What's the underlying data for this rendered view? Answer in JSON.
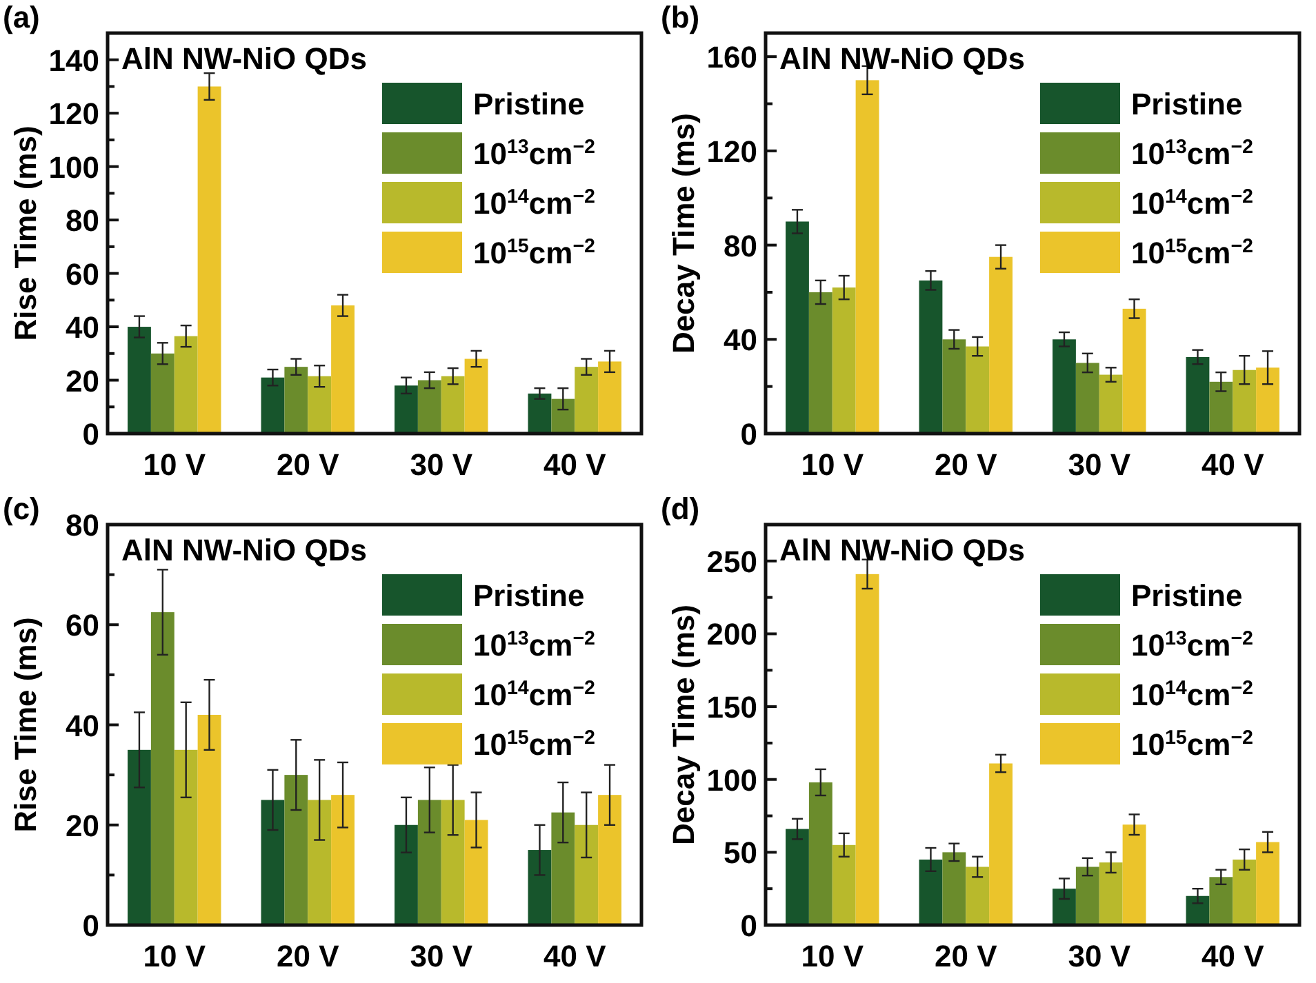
{
  "chart_data": [
    {
      "type": "bar",
      "title": "(a)",
      "annotations": [
        "AlN NW-NiO QDs"
      ],
      "ylabel": "Rise Time (ms)",
      "categories": [
        "10 V",
        "20 V",
        "30 V",
        "40 V"
      ],
      "ylim": [
        0,
        150
      ],
      "yticks": [
        0,
        {
          "value": 10,
          "label": null
        },
        20,
        {
          "value": 30,
          "label": null
        },
        40,
        {
          "value": 50,
          "label": null
        },
        60,
        {
          "value": 70,
          "label": null
        },
        80,
        {
          "value": 90,
          "label": null
        },
        100,
        {
          "value": 110,
          "label": null
        },
        120,
        {
          "value": 130,
          "label": null
        },
        140
      ],
      "legend": "top right",
      "grid": false,
      "series": [
        {
          "name": "Pristine",
          "color": "#17552c",
          "values": [
            40,
            21,
            18,
            15
          ],
          "errors": [
            4,
            3,
            3,
            2
          ]
        },
        {
          "name": "10$^{13}$cm$^{−2}$",
          "color": "#6b8c2c",
          "values": [
            30,
            25,
            20,
            13
          ],
          "errors": [
            4,
            3,
            3,
            4
          ]
        },
        {
          "name": "10$^{14}$cm$^{−2}$",
          "color": "#b8b92c",
          "values": [
            36.5,
            21.5,
            21.5,
            25
          ],
          "errors": [
            4,
            4,
            3,
            3
          ]
        },
        {
          "name": "10$^{15}$cm$^{−2}$",
          "color": "#ebc42b",
          "values": [
            130,
            48,
            28,
            27
          ],
          "errors": [
            5,
            4,
            3,
            4
          ]
        }
      ]
    },
    {
      "type": "bar",
      "title": "(b)",
      "annotations": [
        "AlN NW-NiO QDs"
      ],
      "ylabel": "Decay Time (ms)",
      "categories": [
        "10 V",
        "20 V",
        "30 V",
        "40 V"
      ],
      "ylim": [
        0,
        170
      ],
      "yticks": [
        0,
        {
          "value": 20,
          "label": null
        },
        40,
        {
          "value": 60,
          "label": null
        },
        80,
        {
          "value": 100,
          "label": null
        },
        120,
        {
          "value": 140,
          "label": null
        },
        160
      ],
      "legend": "top right",
      "grid": false,
      "series": [
        {
          "name": "Pristine",
          "color": "#17552c",
          "values": [
            90,
            65,
            40,
            32.5
          ],
          "errors": [
            5,
            4,
            3,
            3
          ]
        },
        {
          "name": "10$^{13}$cm$^{−2}$",
          "color": "#6b8c2c",
          "values": [
            60,
            40,
            30,
            22
          ],
          "errors": [
            5,
            4,
            4,
            4
          ]
        },
        {
          "name": "10$^{14}$cm$^{−2}$",
          "color": "#b8b92c",
          "values": [
            62,
            37,
            25,
            27
          ],
          "errors": [
            5,
            4,
            3,
            6
          ]
        },
        {
          "name": "10$^{15}$cm$^{−2}$",
          "color": "#ebc42b",
          "values": [
            150,
            75,
            53,
            28
          ],
          "errors": [
            6,
            5,
            4,
            7
          ]
        }
      ]
    },
    {
      "type": "bar",
      "title": "(c)",
      "annotations": [
        "AlN NW-NiO QDs"
      ],
      "ylabel": "Rise Time (ms)",
      "categories": [
        "10 V",
        "20 V",
        "30 V",
        "40 V"
      ],
      "ylim": [
        0,
        80
      ],
      "yticks": [
        0,
        {
          "value": 10,
          "label": null
        },
        20,
        {
          "value": 30,
          "label": null
        },
        40,
        {
          "value": 50,
          "label": null
        },
        60,
        {
          "value": 70,
          "label": null
        },
        80
      ],
      "legend": "top right",
      "grid": false,
      "series": [
        {
          "name": "Pristine",
          "color": "#17552c",
          "values": [
            35,
            25,
            20,
            15
          ],
          "errors": [
            7.5,
            6,
            5.5,
            5
          ]
        },
        {
          "name": "10$^{13}$cm$^{−2}$",
          "color": "#6b8c2c",
          "values": [
            62.5,
            30,
            25,
            22.5
          ],
          "errors": [
            8.5,
            7,
            6.5,
            6
          ]
        },
        {
          "name": "10$^{14}$cm$^{−2}$",
          "color": "#b8b92c",
          "values": [
            35,
            25,
            25,
            20
          ],
          "errors": [
            9.5,
            8,
            7,
            6.5
          ]
        },
        {
          "name": "10$^{15}$cm$^{−2}$",
          "color": "#ebc42b",
          "values": [
            42,
            26,
            21,
            26
          ],
          "errors": [
            7,
            6.5,
            5.5,
            6
          ]
        }
      ]
    },
    {
      "type": "bar",
      "title": "(d)",
      "annotations": [
        "AlN NW-NiO QDs"
      ],
      "ylabel": "Decay Time (ms)",
      "categories": [
        "10 V",
        "20 V",
        "30 V",
        "40 V"
      ],
      "ylim": [
        0,
        275
      ],
      "yticks": [
        0,
        {
          "value": 25,
          "label": null
        },
        50,
        {
          "value": 75,
          "label": null
        },
        100,
        {
          "value": 125,
          "label": null
        },
        150,
        {
          "value": 175,
          "label": null
        },
        200,
        {
          "value": 225,
          "label": null
        },
        250
      ],
      "legend": "top right",
      "grid": false,
      "series": [
        {
          "name": "Pristine",
          "color": "#17552c",
          "values": [
            66,
            45,
            25,
            20
          ],
          "errors": [
            7,
            8,
            7,
            5
          ]
        },
        {
          "name": "10$^{13}$cm$^{−2}$",
          "color": "#6b8c2c",
          "values": [
            98,
            50,
            40,
            33
          ],
          "errors": [
            9,
            6,
            6,
            5
          ]
        },
        {
          "name": "10$^{14}$cm$^{−2}$",
          "color": "#b8b92c",
          "values": [
            55,
            40,
            43,
            45
          ],
          "errors": [
            8,
            7,
            7,
            7
          ]
        },
        {
          "name": "10$^{15}$cm$^{−2}$",
          "color": "#ebc42b",
          "values": [
            241,
            111,
            69,
            57
          ],
          "errors": [
            10,
            6,
            7,
            7
          ]
        }
      ]
    }
  ]
}
